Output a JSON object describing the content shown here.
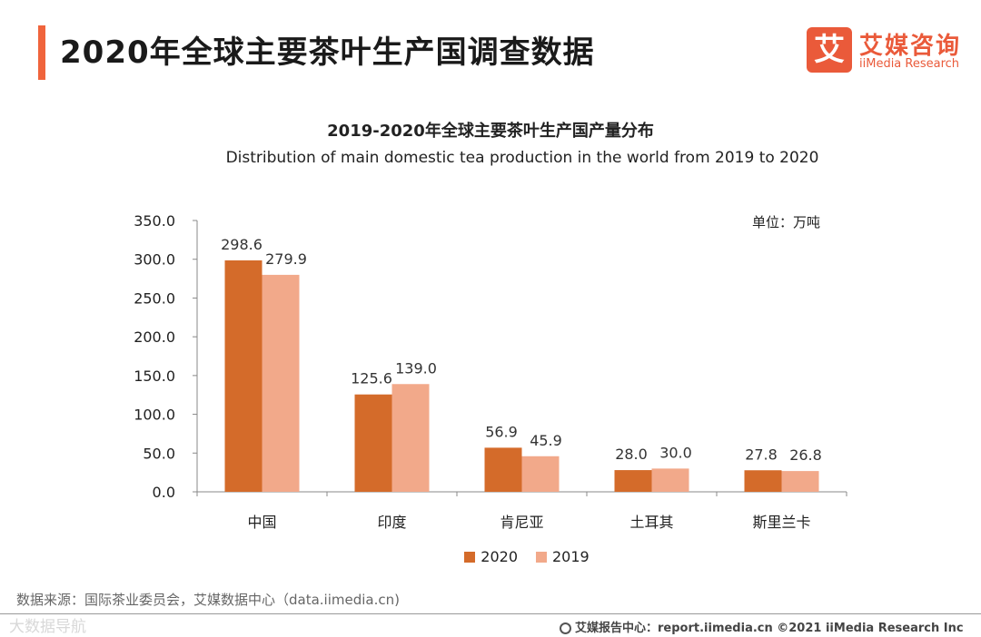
{
  "header": {
    "title": "2020年全球主要茶叶生产国调查数据",
    "brand_mark": "艾",
    "brand_cn": "艾媒咨询",
    "brand_en": "iiMedia Research",
    "accent_color": "#f0643c"
  },
  "chart_data": {
    "type": "bar",
    "title": "2019-2020年全球主要茶叶生产国产量分布",
    "subtitle": "Distribution of main domestic tea production in the world from 2019 to 2020",
    "unit": "单位：万吨",
    "categories": [
      "中国",
      "印度",
      "肯尼亚",
      "土耳其",
      "斯里兰卡"
    ],
    "series": [
      {
        "name": "2020",
        "values": [
          298.6,
          125.6,
          56.9,
          28.0,
          27.8
        ],
        "labels": [
          "298.6",
          "125.6",
          "56.9",
          "28.0",
          "27.8"
        ],
        "color": "#d46b2a"
      },
      {
        "name": "2019",
        "values": [
          279.9,
          139.0,
          45.9,
          30.0,
          26.8
        ],
        "labels": [
          "279.9",
          "139.0",
          "45.9",
          "30.0",
          "26.8"
        ],
        "color": "#f2a98a"
      }
    ],
    "ylim": [
      0,
      350
    ],
    "yticks": [
      "0.0",
      "50.0",
      "100.0",
      "150.0",
      "200.0",
      "250.0",
      "300.0",
      "350.0"
    ],
    "grid": false,
    "legend": "bottom"
  },
  "footer": {
    "source": "数据来源：国际茶业委员会，艾媒数据中心（data.iimedia.cn)",
    "watermark": "大数据导航",
    "report": "艾媒报告中心：report.iimedia.cn   ©2021  iiMedia Research  Inc"
  }
}
